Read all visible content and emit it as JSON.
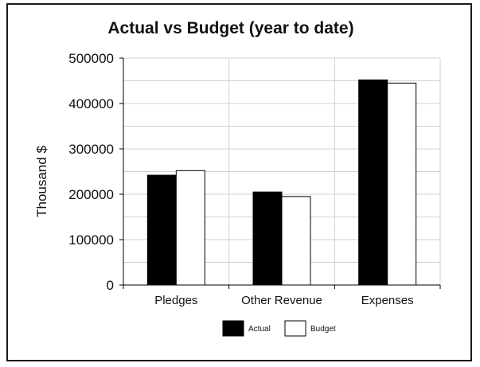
{
  "chart_data": {
    "type": "bar",
    "title": "Actual vs Budget (year to date)",
    "xlabel": "",
    "ylabel": "Thousand $",
    "categories": [
      "Pledges",
      "Other Revenue",
      "Expenses"
    ],
    "series": [
      {
        "name": "Actual",
        "values": [
          242000,
          205000,
          452000
        ],
        "color": "#000000"
      },
      {
        "name": "Budget",
        "values": [
          252000,
          195000,
          445000
        ],
        "color": "#ffffff"
      }
    ],
    "ylim": [
      0,
      500000
    ],
    "yticks": [
      "0",
      "100000",
      "200000",
      "300000",
      "400000",
      "500000"
    ],
    "grid": true,
    "legend": "bottom"
  }
}
